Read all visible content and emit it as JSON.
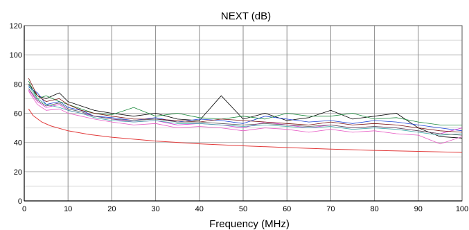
{
  "chart_data": {
    "type": "line",
    "title": "NEXT (dB)",
    "xlabel": "Frequency (MHz)",
    "ylabel": "",
    "xlim": [
      0,
      100
    ],
    "ylim": [
      0,
      120
    ],
    "x_ticks": [
      0,
      10,
      20,
      30,
      40,
      50,
      60,
      70,
      80,
      90,
      100
    ],
    "y_ticks": [
      0,
      20,
      40,
      60,
      80,
      100,
      120
    ],
    "grid": true,
    "legend": "none",
    "limit_line": {
      "color": "#e23a3a",
      "x": [
        1,
        2,
        4,
        6,
        10,
        15,
        20,
        30,
        40,
        50,
        60,
        70,
        80,
        90,
        100
      ],
      "y": [
        63.0,
        58.5,
        54.0,
        51.4,
        48.0,
        45.4,
        43.6,
        41.0,
        39.1,
        37.7,
        36.5,
        35.5,
        34.6,
        33.9,
        33.2
      ]
    },
    "series": [
      {
        "color": "#000000",
        "x": [
          1,
          3,
          5,
          8,
          10,
          13,
          16,
          20,
          25,
          30,
          35,
          40,
          45,
          50,
          55,
          60,
          65,
          70,
          75,
          80,
          85,
          90,
          95,
          100
        ],
        "y": [
          80,
          72,
          70,
          74,
          68,
          65,
          62,
          60,
          58,
          60,
          56,
          55,
          72,
          56,
          60,
          55,
          57,
          62,
          56,
          58,
          60,
          50,
          44,
          43
        ]
      },
      {
        "color": "#1a3fd6",
        "x": [
          1,
          3,
          5,
          8,
          10,
          13,
          16,
          20,
          25,
          30,
          35,
          40,
          45,
          50,
          55,
          60,
          65,
          70,
          75,
          80,
          85,
          90,
          95,
          100
        ],
        "y": [
          78,
          74,
          66,
          68,
          64,
          62,
          58,
          57,
          55,
          57,
          54,
          56,
          55,
          53,
          58,
          56,
          54,
          55,
          53,
          55,
          54,
          52,
          50,
          48
        ]
      },
      {
        "color": "#1b8a3c",
        "x": [
          1,
          3,
          5,
          8,
          10,
          13,
          16,
          20,
          25,
          30,
          35,
          40,
          45,
          50,
          55,
          60,
          65,
          70,
          75,
          80,
          85,
          90,
          95,
          100
        ],
        "y": [
          82,
          70,
          72,
          68,
          66,
          63,
          60,
          59,
          64,
          58,
          60,
          57,
          56,
          58,
          56,
          60,
          58,
          58,
          60,
          56,
          57,
          54,
          52,
          52
        ]
      },
      {
        "color": "#d42fd4",
        "x": [
          1,
          3,
          5,
          8,
          10,
          13,
          16,
          20,
          25,
          30,
          35,
          40,
          45,
          50,
          55,
          60,
          65,
          70,
          75,
          80,
          85,
          90,
          95,
          100
        ],
        "y": [
          76,
          68,
          64,
          66,
          62,
          60,
          58,
          56,
          54,
          55,
          52,
          53,
          52,
          50,
          54,
          52,
          50,
          52,
          50,
          51,
          50,
          48,
          46,
          50
        ]
      },
      {
        "color": "#7a1010",
        "x": [
          1,
          3,
          5,
          8,
          10,
          13,
          16,
          20,
          25,
          30,
          35,
          40,
          45,
          50,
          55,
          60,
          65,
          70,
          75,
          80,
          85,
          90,
          95,
          100
        ],
        "y": [
          84,
          72,
          68,
          70,
          66,
          62,
          60,
          58,
          56,
          56,
          55,
          54,
          56,
          55,
          54,
          53,
          52,
          54,
          52,
          53,
          52,
          50,
          48,
          47
        ]
      },
      {
        "color": "#3aa9a9",
        "x": [
          1,
          3,
          5,
          8,
          10,
          13,
          16,
          20,
          25,
          30,
          35,
          40,
          45,
          50,
          55,
          60,
          65,
          70,
          75,
          80,
          85,
          90,
          95,
          100
        ],
        "y": [
          79,
          70,
          66,
          64,
          62,
          60,
          57,
          55,
          54,
          55,
          53,
          53,
          52,
          51,
          52,
          51,
          50,
          51,
          49,
          50,
          49,
          47,
          45,
          46
        ]
      },
      {
        "color": "#e65ac4",
        "x": [
          1,
          3,
          5,
          8,
          10,
          13,
          16,
          20,
          25,
          30,
          35,
          40,
          45,
          50,
          55,
          60,
          65,
          70,
          75,
          80,
          85,
          90,
          95,
          100
        ],
        "y": [
          75,
          66,
          62,
          63,
          60,
          58,
          56,
          54,
          52,
          53,
          50,
          51,
          50,
          48,
          50,
          49,
          47,
          49,
          47,
          48,
          46,
          45,
          39,
          44
        ]
      },
      {
        "color": "#555555",
        "x": [
          1,
          3,
          5,
          8,
          10,
          13,
          16,
          20,
          25,
          30,
          35,
          40,
          45,
          50,
          55,
          60,
          65,
          70,
          75,
          80,
          85,
          90,
          95,
          100
        ],
        "y": [
          77,
          69,
          65,
          67,
          63,
          61,
          58,
          56,
          55,
          56,
          54,
          54,
          53,
          52,
          53,
          52,
          51,
          52,
          50,
          51,
          50,
          48,
          46,
          45
        ]
      }
    ]
  }
}
